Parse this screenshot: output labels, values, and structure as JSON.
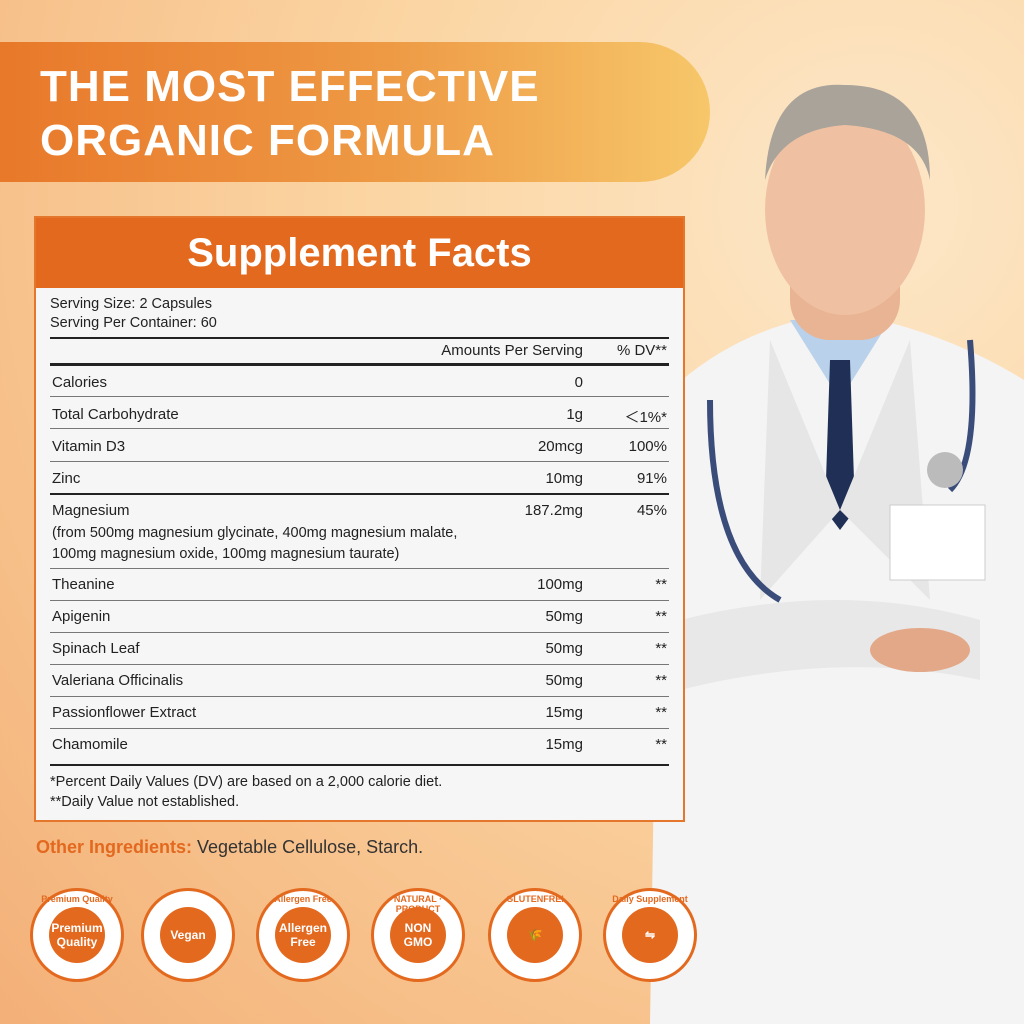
{
  "headline": {
    "line1": "THE MOST EFFECTIVE",
    "line2": "ORGANIC FORMULA"
  },
  "facts": {
    "title": "Supplement Facts",
    "serving_size": "Serving Size: 2 Capsules",
    "serving_per_container": "Serving Per Container: 60",
    "col_amount": "Amounts Per Serving",
    "col_dv": "% DV**",
    "rows": [
      {
        "name": "Calories",
        "amount": "0",
        "dv": ""
      },
      {
        "name": "Total Carbohydrate",
        "amount": "1g",
        "dv": "＜1%*"
      },
      {
        "name": "Vitamin D3",
        "amount": "20mcg",
        "dv": "100%"
      },
      {
        "name": "Zinc",
        "amount": "10mg",
        "dv": "91%"
      },
      {
        "name": "Magnesium",
        "amount": "187.2mg",
        "dv": "45%",
        "sub1": "(from 500mg magnesium glycinate, 400mg magnesium malate,",
        "sub2": "100mg magnesium oxide, 100mg magnesium taurate)"
      },
      {
        "name": "Theanine",
        "amount": "100mg",
        "dv": "**"
      },
      {
        "name": "Apigenin",
        "amount": "50mg",
        "dv": "**"
      },
      {
        "name": "Spinach Leaf",
        "amount": "50mg",
        "dv": "**"
      },
      {
        "name": "Valeriana Officinalis",
        "amount": "50mg",
        "dv": "**"
      },
      {
        "name": "Passionflower Extract",
        "amount": "15mg",
        "dv": "**"
      },
      {
        "name": "Chamomile",
        "amount": "15mg",
        "dv": "**"
      }
    ],
    "footnote1": "*Percent Daily Values (DV) are based on a 2,000 calorie diet.",
    "footnote2": "**Daily Value not established."
  },
  "other_ingredients": {
    "label": "Other Ingredients:",
    "value": " Vegetable Cellulose, Starch."
  },
  "badges": [
    {
      "ring": "Premium Quality",
      "center": "Premium Quality"
    },
    {
      "ring": "",
      "center": "Vegan"
    },
    {
      "ring": "Allergen Free",
      "center": "Allergen Free"
    },
    {
      "ring": "NATURAL · PRODUCT",
      "center": "NON GMO"
    },
    {
      "ring": "GLUTENFREI",
      "center": "🌾"
    },
    {
      "ring": "Daily Supplement",
      "center": "⇋"
    }
  ],
  "colors": {
    "accent": "#e3691f",
    "background": "#f7c08a"
  }
}
